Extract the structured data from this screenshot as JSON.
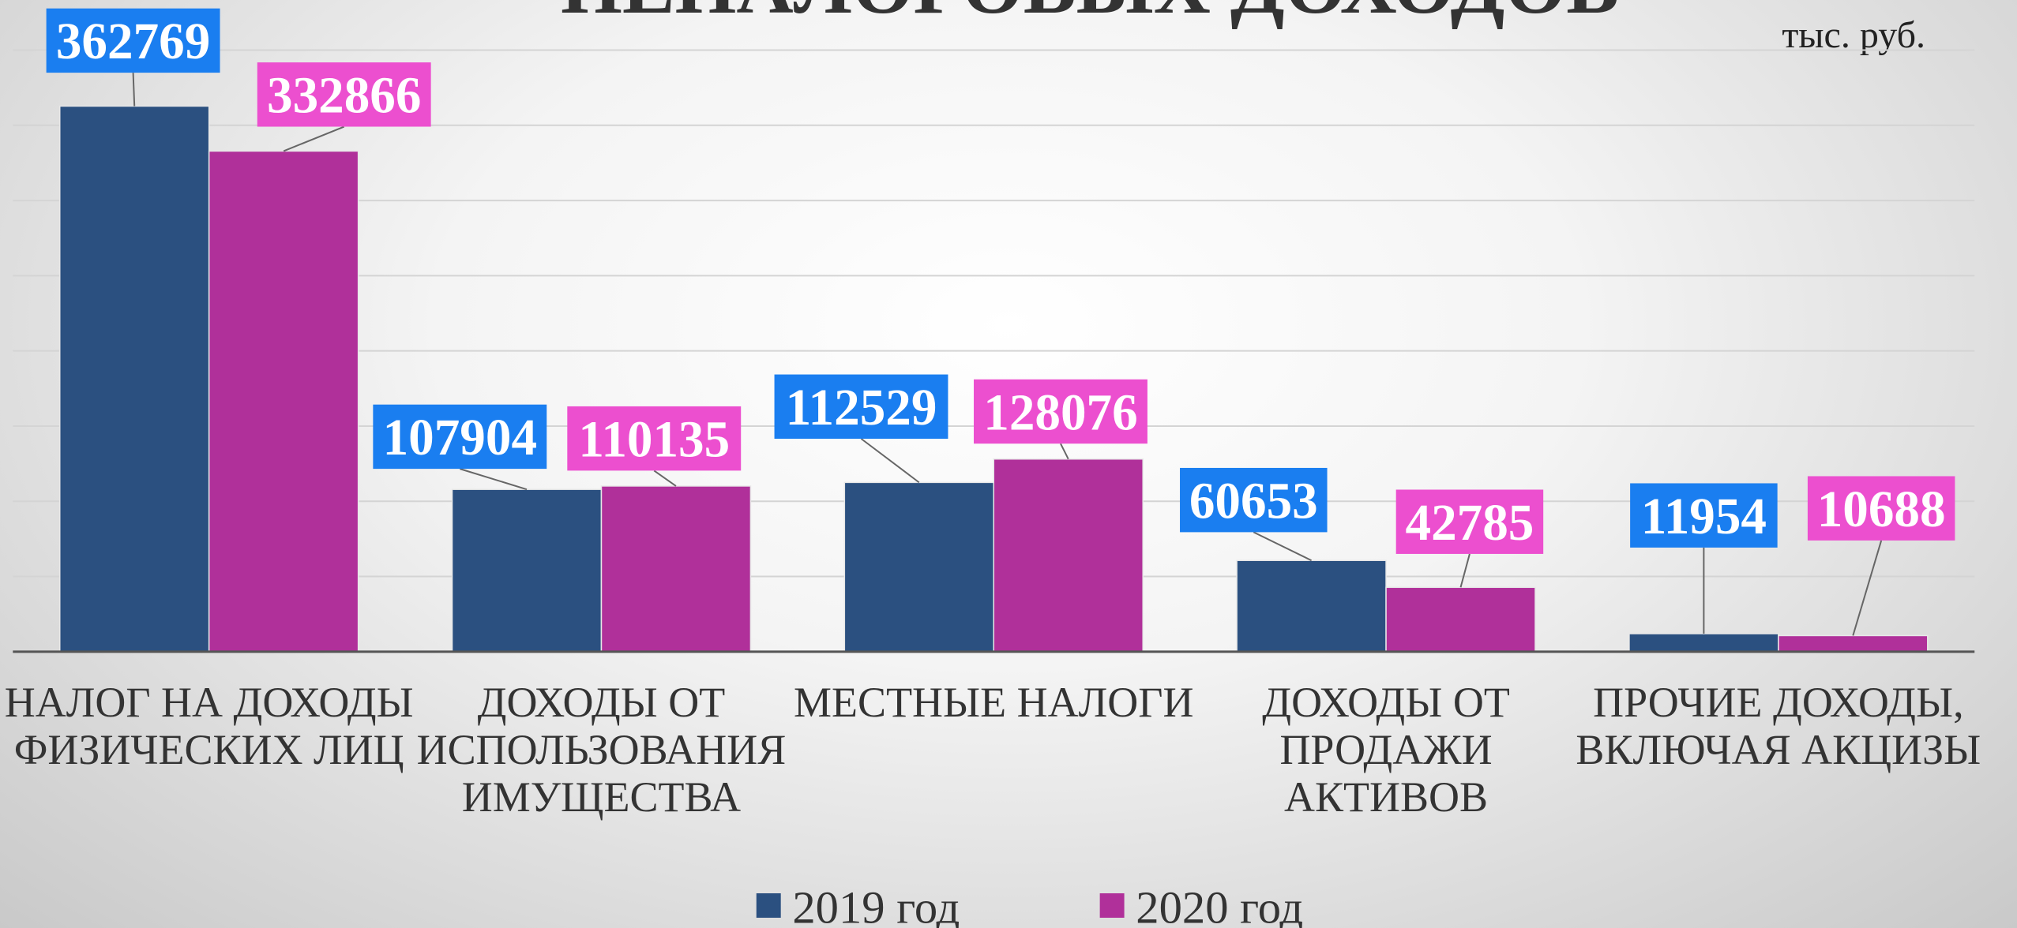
{
  "chart_data": {
    "type": "bar",
    "title": "НЕНАЛОГОВЫХ ДОХОДОВ",
    "annotation": "тыс. руб.",
    "categories": [
      "НАЛОГ НА ДОХОДЫ ФИЗИЧЕСКИХ ЛИЦ",
      "ДОХОДЫ ОТ ИСПОЛЬЗОВАНИЯ ИМУЩЕСТВА",
      "МЕСТНЫЕ НАЛОГИ",
      "ДОХОДЫ ОТ ПРОДАЖИ АКТИВОВ",
      "ПРОЧИЕ ДОХОДЫ, ВКЛЮЧАЯ АКЦИЗЫ"
    ],
    "series": [
      {
        "name": "2019 год",
        "color": "#2b5080",
        "label_color": "#1a7ef0",
        "values": [
          362769,
          107904,
          112529,
          60653,
          11954
        ]
      },
      {
        "name": "2020 год",
        "color": "#b0309a",
        "label_color": "#ec4fcf",
        "values": [
          332866,
          110135,
          128076,
          42785,
          10688
        ]
      }
    ],
    "ylim": [
      0,
      400000
    ],
    "yticks": [
      0,
      50000,
      100000,
      150000,
      200000,
      250000,
      300000,
      350000,
      400000
    ],
    "grid": true,
    "legend": "bottom"
  }
}
